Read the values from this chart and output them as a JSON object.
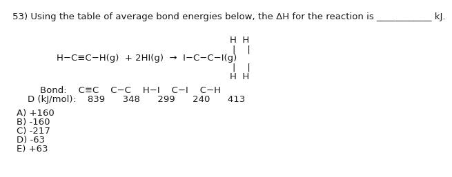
{
  "title": "53) Using the table of average bond energies below, the ΔH for the reaction is ____________ kJ.",
  "reaction_main": "H−C≡C−H(g)  + 2HI(g)  →  I−C−C−I(g)",
  "top_hh": "H  H",
  "top_bars": "|    |",
  "bot_bars": "|    |",
  "bot_hh": "H  H",
  "bond_row": "Bond:    C≡C    C−C    H−I    C−I    C−H",
  "d_row": "D (kJ/mol):    839      348      299      240      413",
  "choices": [
    "A) +160",
    "B) -160",
    "C) -217",
    "D) -63",
    "E) +63"
  ],
  "font_size": 9.5,
  "background_color": "#ffffff",
  "text_color": "#1a1a1a"
}
